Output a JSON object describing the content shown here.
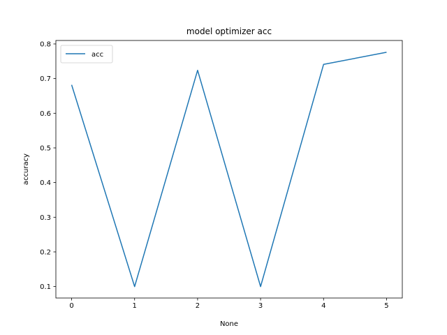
{
  "chart_data": {
    "type": "line",
    "title": "model optimizer acc",
    "xlabel": "None",
    "ylabel": "accuracy",
    "x": [
      0,
      1,
      2,
      3,
      4,
      5
    ],
    "xticks": [
      "0",
      "1",
      "2",
      "3",
      "4",
      "5"
    ],
    "yticks": [
      "0.1",
      "0.2",
      "0.3",
      "0.4",
      "0.5",
      "0.6",
      "0.7",
      "0.8"
    ],
    "ytick_values": [
      0.1,
      0.2,
      0.3,
      0.4,
      0.5,
      0.6,
      0.7,
      0.8
    ],
    "xlim": [
      -0.25,
      5.25
    ],
    "ylim": [
      0.067,
      0.81
    ],
    "grid": false,
    "legend_position": "top-left",
    "series": [
      {
        "name": "acc",
        "color": "#1f77b4",
        "values": [
          0.682,
          0.1,
          0.724,
          0.1,
          0.741,
          0.776
        ]
      }
    ]
  }
}
